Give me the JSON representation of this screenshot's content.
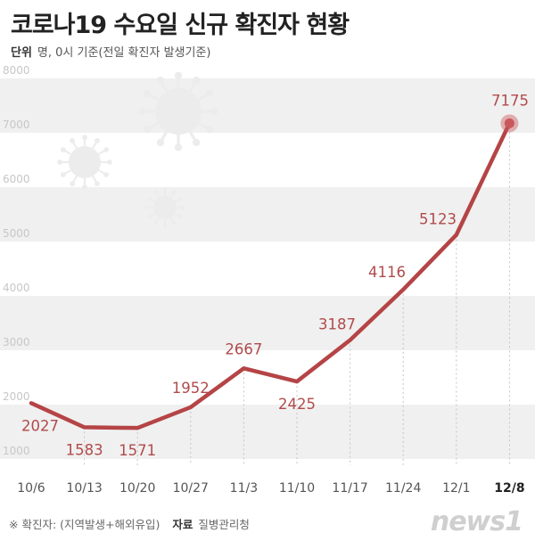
{
  "header": {
    "title": "코로나19 수요일 신규 확진자 현황",
    "unit_label": "단위",
    "unit_text": "명, 0시 기준(전일 확진자 발생기준)"
  },
  "footer": {
    "note": "※ 확진자: (지역발생+해외유입)",
    "source_label": "자료",
    "source_value": "질병관리청"
  },
  "logo": {
    "text": "news1"
  },
  "colors": {
    "line": "#b54446",
    "band": "#f0f0f0",
    "label": "#b14a4b",
    "marker": "#c9585b",
    "virus": "#ececec"
  },
  "chart_data": {
    "type": "line",
    "x": [
      "10/6",
      "10/13",
      "10/20",
      "10/27",
      "11/3",
      "11/10",
      "11/17",
      "11/24",
      "12/1",
      "12/8"
    ],
    "values": [
      2027,
      1583,
      1571,
      1952,
      2667,
      2425,
      3187,
      4116,
      5123,
      7175
    ],
    "y_ticks": [
      1000,
      2000,
      3000,
      4000,
      5000,
      6000,
      7000,
      8000
    ],
    "ylim": [
      1000,
      8000
    ],
    "highlight_last": true,
    "grid": "alternating horizontal bands"
  }
}
